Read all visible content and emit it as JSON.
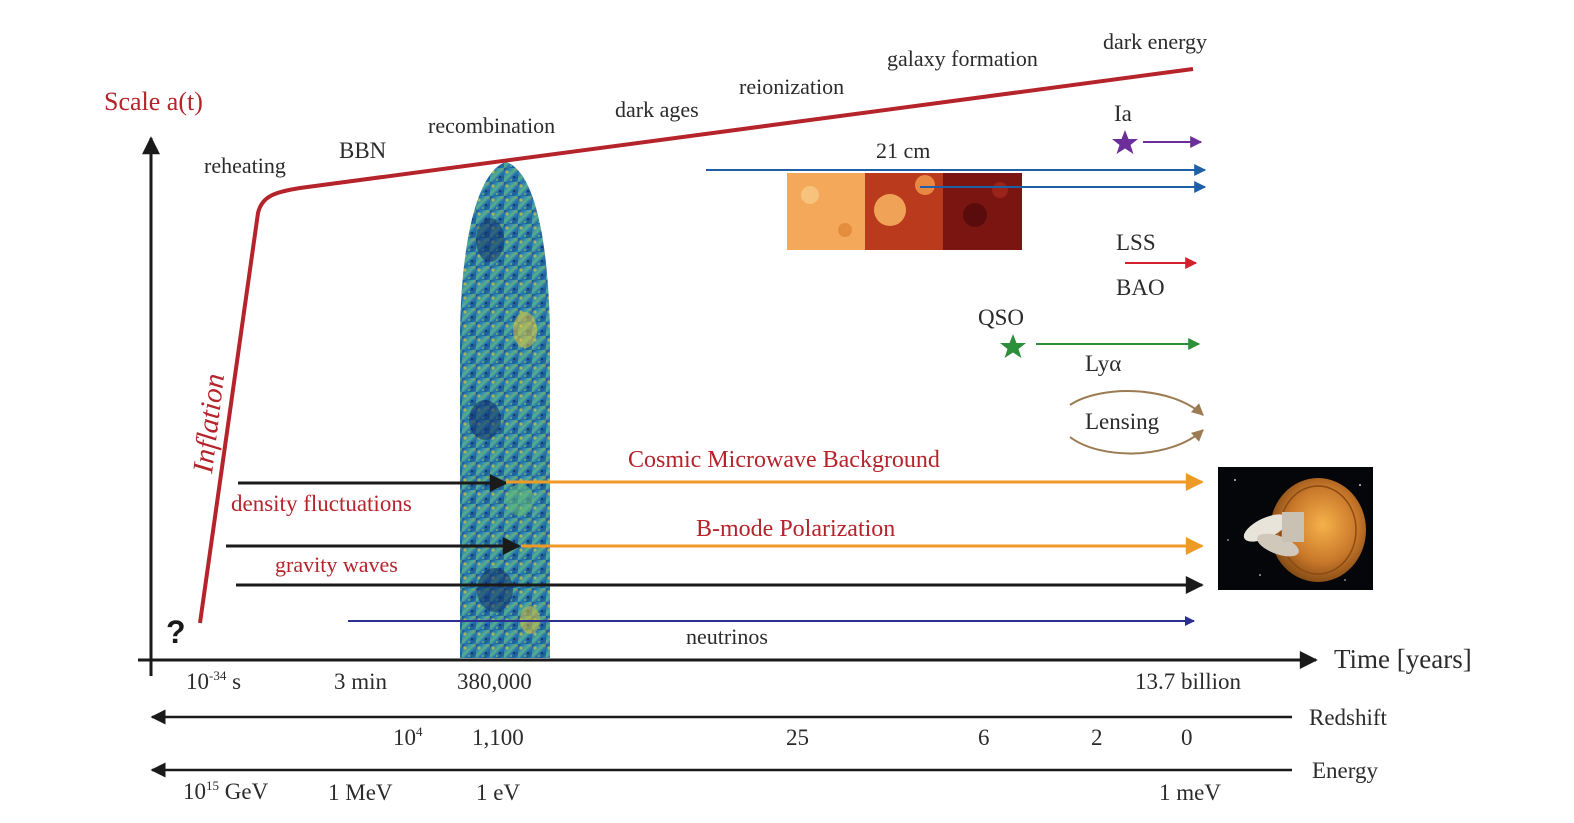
{
  "colors": {
    "scale": "#b5232b",
    "axis": "#1a1a1a",
    "text": "#2b2b2b",
    "cmb": "#f09a26",
    "sn": "#6b2e9a",
    "cm21": "#1f5fa8",
    "lss": "#d3202a",
    "lya": "#2c8f3a",
    "lensing": "#9b7b52",
    "neutrino": "#2b2f8f"
  },
  "scale_label": "Scale a(t)",
  "inflation_label": "Inflation",
  "question_mark": "?",
  "epochs": {
    "reheating": "reheating",
    "bbn": "BBN",
    "recombination": "recombination",
    "dark_ages": "dark ages",
    "reionization": "reionization",
    "galaxy_formation": "galaxy formation",
    "dark_energy": "dark energy"
  },
  "probes": {
    "ia": "Ia",
    "cm21": "21 cm",
    "lss": "LSS",
    "bao": "BAO",
    "qso": "QSO",
    "lya": "Lyα",
    "lensing": "Lensing",
    "cmb": "Cosmic Microwave Background",
    "bmode": "B-mode Polarization",
    "density": "density fluctuations",
    "gravity": "gravity waves",
    "neutrinos": "neutrinos"
  },
  "axes": {
    "time_label": "Time [years]",
    "time_ticks": {
      "t1_base": "10",
      "t1_exp": "-34",
      "t1_unit": " s",
      "t2": "3 min",
      "t3": "380,000",
      "t4": "13.7 billion"
    },
    "redshift_label": "Redshift",
    "redshift_ticks": {
      "z1_base": "10",
      "z1_exp": "4",
      "z2": "1,100",
      "z3": "25",
      "z4": "6",
      "z5": "2",
      "z6": "0"
    },
    "energy_label": "Energy",
    "energy_ticks": {
      "e1_base": "10",
      "e1_exp": "15",
      "e1_unit": " GeV",
      "e2": "1 MeV",
      "e3": "1 eV",
      "e4": "1 meV"
    }
  }
}
